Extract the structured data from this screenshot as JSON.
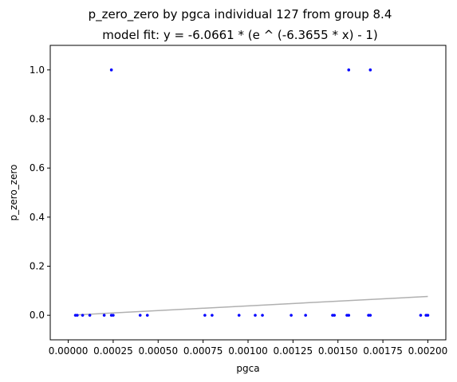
{
  "chart_data": {
    "type": "scatter",
    "title": "p_zero_zero by pgca individual 127 from group 8.4",
    "subtitle": "model fit: y = -6.0661 * (e ^ (-6.3655 * x) - 1)",
    "xlabel": "pgca",
    "ylabel": "p_zero_zero",
    "xlim": [
      -0.0001,
      0.0021
    ],
    "ylim": [
      -0.1,
      1.1
    ],
    "xticks": [
      0.0,
      0.00025,
      0.0005,
      0.00075,
      0.001,
      0.00125,
      0.0015,
      0.00175,
      0.002
    ],
    "xtick_labels": [
      "0.00000",
      "0.00025",
      "0.00050",
      "0.00075",
      "0.00100",
      "0.00125",
      "0.00150",
      "0.00175",
      "0.00200"
    ],
    "yticks": [
      0.0,
      0.2,
      0.4,
      0.6,
      0.8,
      1.0
    ],
    "ytick_labels": [
      "0.0",
      "0.2",
      "0.4",
      "0.6",
      "0.8",
      "1.0"
    ],
    "grid": false,
    "point_color": "#0000ff",
    "fit_color": "#b0b0b0",
    "points": [
      {
        "x": 4e-05,
        "y": 0.0
      },
      {
        "x": 5e-05,
        "y": 0.0
      },
      {
        "x": 8e-05,
        "y": 0.0
      },
      {
        "x": 0.00012,
        "y": 0.0
      },
      {
        "x": 0.0002,
        "y": 0.0
      },
      {
        "x": 0.00024,
        "y": 0.0
      },
      {
        "x": 0.00025,
        "y": 0.0
      },
      {
        "x": 0.00024,
        "y": 1.0
      },
      {
        "x": 0.0004,
        "y": 0.0
      },
      {
        "x": 0.00044,
        "y": 0.0
      },
      {
        "x": 0.00076,
        "y": 0.0
      },
      {
        "x": 0.0008,
        "y": 0.0
      },
      {
        "x": 0.00095,
        "y": 0.0
      },
      {
        "x": 0.00104,
        "y": 0.0
      },
      {
        "x": 0.00108,
        "y": 0.0
      },
      {
        "x": 0.00124,
        "y": 0.0
      },
      {
        "x": 0.00132,
        "y": 0.0
      },
      {
        "x": 0.00147,
        "y": 0.0
      },
      {
        "x": 0.00148,
        "y": 0.0
      },
      {
        "x": 0.00155,
        "y": 0.0
      },
      {
        "x": 0.00156,
        "y": 0.0
      },
      {
        "x": 0.00156,
        "y": 1.0
      },
      {
        "x": 0.00167,
        "y": 0.0
      },
      {
        "x": 0.00168,
        "y": 0.0
      },
      {
        "x": 0.00168,
        "y": 1.0
      },
      {
        "x": 0.00196,
        "y": 0.0
      },
      {
        "x": 0.00199,
        "y": 0.0
      },
      {
        "x": 0.002,
        "y": 0.0
      }
    ],
    "fit_line": {
      "x": [
        4e-05,
        0.002
      ],
      "y": [
        0.0015,
        0.0767
      ]
    }
  }
}
